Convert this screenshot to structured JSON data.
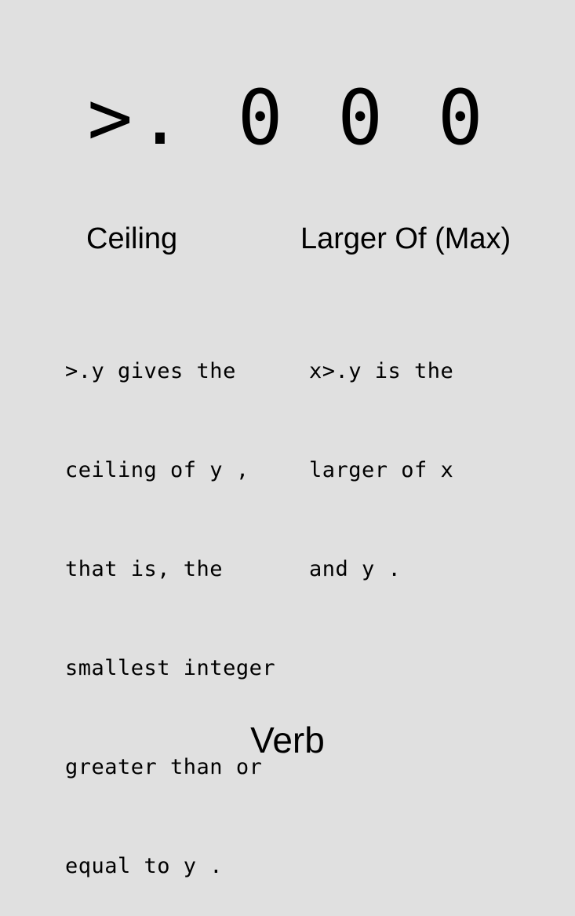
{
  "glyph": {
    "symbol": ">. 0 0 0"
  },
  "columns": [
    {
      "title": "Ceiling",
      "lines": [
        ">.y gives the",
        "ceiling of y ,",
        "that is, the",
        "smallest integer",
        "greater than or",
        "equal to y ."
      ]
    },
    {
      "title": "Larger Of (Max)",
      "lines": [
        "x>.y is the",
        "larger of x",
        "and y ."
      ]
    }
  ],
  "footer": {
    "part_of_speech": "Verb"
  }
}
